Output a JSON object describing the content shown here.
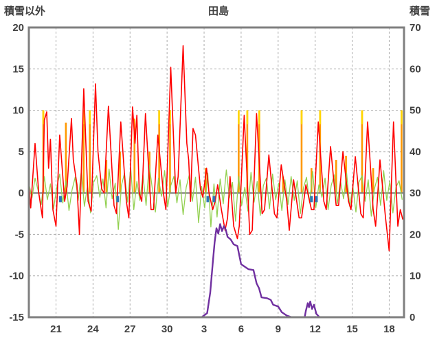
{
  "chart_data": {
    "type": "line",
    "title": "田島",
    "left_axis": {
      "label": "積雪以外",
      "min": -15,
      "max": 20,
      "ticks": [
        20,
        15,
        10,
        5,
        0,
        -5,
        -10,
        -15
      ]
    },
    "right_axis": {
      "label": "積雪",
      "min": 0,
      "max": 70,
      "ticks": [
        70,
        60,
        50,
        40,
        30,
        20,
        10,
        0
      ]
    },
    "x_axis": {
      "min": 0,
      "max": 30.4,
      "tick_positions": [
        2.2,
        5.2,
        8.2,
        11.2,
        14.2,
        17.2,
        20.2,
        23.2,
        26.2,
        29.2
      ],
      "tick_labels": [
        "21",
        "24",
        "27",
        "30",
        "3",
        "6",
        "9",
        "12",
        "15",
        "18"
      ]
    },
    "grid": {
      "line_color": "#ABABAB",
      "zero_line_color": "#7F7F7F",
      "frame_color": "#7F7F7F",
      "label_color": "#404040"
    },
    "series": [
      {
        "name": "orange-bars",
        "type": "bar",
        "axis": "left",
        "color": "#FF9900",
        "cap_color": "#FFD700",
        "bars": [
          [
            1.17,
            10
          ],
          [
            3.0,
            8.5
          ],
          [
            4.44,
            10
          ],
          [
            4.94,
            10
          ],
          [
            6.28,
            4
          ],
          [
            7.39,
            5
          ],
          [
            8.56,
            9
          ],
          [
            9.78,
            5
          ],
          [
            10.56,
            10
          ],
          [
            11.44,
            10
          ],
          [
            14.33,
            3
          ],
          [
            17.0,
            10
          ],
          [
            17.7,
            10
          ],
          [
            18.67,
            10
          ],
          [
            20.6,
            2
          ],
          [
            22.1,
            10
          ],
          [
            22.9,
            3
          ],
          [
            23.6,
            10
          ],
          [
            24.9,
            4
          ],
          [
            25.7,
            4.5
          ],
          [
            27.0,
            10
          ],
          [
            27.9,
            3
          ],
          [
            30.2,
            10
          ]
        ]
      },
      {
        "name": "green-line",
        "type": "line",
        "axis": "left",
        "color": "#92D050",
        "start": 0,
        "step": 0.25,
        "values": [
          1.2,
          -0.6,
          1.8,
          0.3,
          -1.4,
          2.0,
          -0.8,
          1.1,
          -1.9,
          0.6,
          2.3,
          -1.2,
          1.5,
          -2.1,
          0.4,
          1.9,
          -0.9,
          2.6,
          -1.6,
          0.8,
          -2.4,
          1.3,
          2.1,
          -0.5,
          1.7,
          -1.8,
          2.9,
          -0.7,
          1.2,
          -4.4,
          0.9,
          2.4,
          -1.1,
          3.1,
          -2.0,
          1.4,
          -0.9,
          2.2,
          -1.5,
          3.4,
          0.6,
          -2.3,
          1.8,
          -0.4,
          2.7,
          -1.7,
          0.9,
          2.0,
          -1.2,
          1.6,
          -2.6,
          0.7,
          2.2,
          -1.0,
          1.9,
          -3.6,
          0.8,
          -1.8,
          2.4,
          -4.1,
          1.1,
          -2.9,
          1.7,
          -1.3,
          2.8,
          -0.6,
          1.3,
          -3.4,
          2.0,
          -1.5,
          0.7,
          -2.2,
          2.5,
          -1.1,
          1.4,
          -2.7,
          0.9,
          1.8,
          -1.9,
          2.3,
          -0.8,
          1.2,
          -2.1,
          1.6,
          -1.4,
          2.0,
          -0.9,
          1.5,
          -2.5,
          0.6,
          1.9,
          -1.2,
          2.6,
          -1.8,
          1.0,
          -0.5,
          1.8,
          -2.0,
          0.9,
          2.2,
          -1.3,
          1.5,
          -0.7,
          2.4,
          -1.6,
          0.8,
          -2.3,
          1.3,
          2.1,
          -1.0,
          1.6,
          -2.8,
          0.5,
          1.9,
          -1.5,
          2.7,
          -0.9,
          1.4,
          -2.4,
          0.7,
          1.5,
          -0.8
        ]
      },
      {
        "name": "red-line",
        "type": "line",
        "axis": "left",
        "color": "#FF0000",
        "points": [
          [
            0.0,
            1.5
          ],
          [
            0.15,
            -1.8
          ],
          [
            0.5,
            6.0
          ],
          [
            0.8,
            0.0
          ],
          [
            1.1,
            -3.0
          ],
          [
            1.25,
            8.8
          ],
          [
            1.45,
            9.8
          ],
          [
            1.6,
            3.0
          ],
          [
            1.75,
            6.5
          ],
          [
            1.95,
            -2.0
          ],
          [
            2.2,
            -4.0
          ],
          [
            2.5,
            7.0
          ],
          [
            2.9,
            -1.0
          ],
          [
            3.1,
            0.8
          ],
          [
            3.45,
            9.0
          ],
          [
            3.6,
            4.0
          ],
          [
            3.9,
            1.0
          ],
          [
            4.1,
            -5.0
          ],
          [
            4.45,
            12.6
          ],
          [
            4.8,
            -1.0
          ],
          [
            5.05,
            -2.2
          ],
          [
            5.4,
            13.2
          ],
          [
            5.6,
            5.0
          ],
          [
            5.9,
            0.5
          ],
          [
            6.1,
            0.0
          ],
          [
            6.45,
            10.5
          ],
          [
            6.9,
            -1.5
          ],
          [
            7.1,
            -2.5
          ],
          [
            7.45,
            8.6
          ],
          [
            7.9,
            -1.0
          ],
          [
            8.1,
            -3.0
          ],
          [
            8.4,
            10.4
          ],
          [
            8.6,
            6.0
          ],
          [
            8.75,
            9.4
          ],
          [
            8.95,
            0.0
          ],
          [
            9.15,
            -1.0
          ],
          [
            9.45,
            9.6
          ],
          [
            9.9,
            -2.0
          ],
          [
            10.1,
            -2.0
          ],
          [
            10.45,
            7.0
          ],
          [
            10.9,
            0.0
          ],
          [
            11.1,
            -2.0
          ],
          [
            11.5,
            15.2
          ],
          [
            11.9,
            0.0
          ],
          [
            12.1,
            2.0
          ],
          [
            12.5,
            17.8
          ],
          [
            12.8,
            6.0
          ],
          [
            12.95,
            4.0
          ],
          [
            13.1,
            -1.0
          ],
          [
            13.3,
            7.8
          ],
          [
            13.5,
            7.0
          ],
          [
            13.9,
            0.5
          ],
          [
            14.1,
            -0.5
          ],
          [
            14.4,
            3.0
          ],
          [
            14.6,
            0.0
          ],
          [
            14.9,
            -2.0
          ],
          [
            15.1,
            -1.0
          ],
          [
            15.3,
            1.0
          ],
          [
            15.6,
            -2.0
          ],
          [
            15.9,
            -4.5
          ],
          [
            16.1,
            -3.0
          ],
          [
            16.3,
            2.0
          ],
          [
            16.6,
            -4.0
          ],
          [
            16.9,
            -5.5
          ],
          [
            17.05,
            -4.0
          ],
          [
            17.45,
            9.4
          ],
          [
            17.9,
            -5.0
          ],
          [
            18.1,
            -4.5
          ],
          [
            18.45,
            9.6
          ],
          [
            18.9,
            -2.5
          ],
          [
            19.1,
            -2.0
          ],
          [
            19.45,
            4.6
          ],
          [
            19.9,
            -2.5
          ],
          [
            20.1,
            -3.0
          ],
          [
            20.45,
            3.4
          ],
          [
            20.9,
            -1.0
          ],
          [
            21.1,
            -4.5
          ],
          [
            21.45,
            1.6
          ],
          [
            21.9,
            -3.0
          ],
          [
            22.1,
            -3.0
          ],
          [
            22.45,
            1.0
          ],
          [
            22.9,
            -2.0
          ],
          [
            23.1,
            -2.0
          ],
          [
            23.45,
            8.6
          ],
          [
            23.9,
            -1.0
          ],
          [
            24.1,
            -2.0
          ],
          [
            24.45,
            5.6
          ],
          [
            24.9,
            -1.5
          ],
          [
            25.1,
            -1.5
          ],
          [
            25.45,
            5.0
          ],
          [
            25.9,
            -1.0
          ],
          [
            26.1,
            -2.0
          ],
          [
            26.45,
            4.4
          ],
          [
            26.9,
            -2.5
          ],
          [
            27.1,
            -3.0
          ],
          [
            27.45,
            8.6
          ],
          [
            27.9,
            -2.0
          ],
          [
            28.1,
            -4.0
          ],
          [
            28.45,
            4.0
          ],
          [
            28.9,
            -3.0
          ],
          [
            29.05,
            -5.0
          ],
          [
            29.2,
            -7.0
          ],
          [
            29.55,
            8.6
          ],
          [
            29.9,
            -4.0
          ],
          [
            30.1,
            -2.0
          ],
          [
            30.3,
            -3.2
          ]
        ]
      },
      {
        "name": "purple-line",
        "type": "line",
        "axis": "right",
        "color": "#7030A0",
        "points": [
          [
            0,
            0
          ],
          [
            14.0,
            0
          ],
          [
            14.45,
            1
          ],
          [
            14.7,
            6
          ],
          [
            14.9,
            13
          ],
          [
            15.05,
            18
          ],
          [
            15.2,
            21.5
          ],
          [
            15.35,
            20.2
          ],
          [
            15.5,
            22.5
          ],
          [
            15.65,
            20.8
          ],
          [
            15.8,
            22.0
          ],
          [
            15.95,
            21.2
          ],
          [
            16.1,
            19.4
          ],
          [
            16.35,
            18.8
          ],
          [
            16.6,
            17.6
          ],
          [
            16.9,
            17.2
          ],
          [
            17.05,
            15.0
          ],
          [
            17.2,
            12.8
          ],
          [
            17.5,
            12.2
          ],
          [
            17.8,
            11.6
          ],
          [
            18.2,
            11.4
          ],
          [
            18.45,
            8.2
          ],
          [
            18.65,
            7.0
          ],
          [
            18.85,
            4.8
          ],
          [
            19.3,
            4.6
          ],
          [
            19.6,
            4.2
          ],
          [
            19.8,
            3.0
          ],
          [
            20.2,
            2.6
          ],
          [
            20.5,
            1.2
          ],
          [
            20.9,
            0.4
          ],
          [
            21.3,
            0
          ],
          [
            22.35,
            0
          ],
          [
            22.45,
            1.6
          ],
          [
            22.6,
            3.4
          ],
          [
            22.7,
            2.4
          ],
          [
            22.8,
            3.8
          ],
          [
            22.95,
            2.0
          ],
          [
            23.1,
            3.0
          ],
          [
            23.3,
            0.8
          ],
          [
            23.55,
            0
          ],
          [
            30.4,
            0
          ]
        ]
      },
      {
        "name": "blue-marks",
        "type": "tick",
        "axis": "left",
        "color": "#2E75B6",
        "marks": [
          2.56,
          7.2,
          14.5,
          15.0,
          22.9,
          23.3
        ]
      }
    ]
  }
}
